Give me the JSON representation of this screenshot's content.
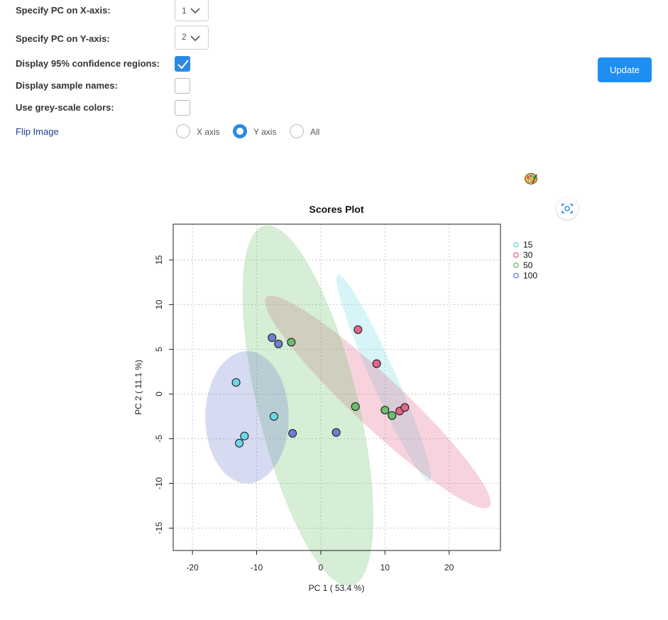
{
  "controls": {
    "pc_x_label": "Specify PC on X-axis:",
    "pc_x_value": "1",
    "pc_y_label": "Specify PC on Y-axis:",
    "pc_y_value": "2",
    "confidence_label": "Display 95% confidence regions:",
    "confidence_checked": true,
    "sample_names_label": "Display sample names:",
    "sample_names_checked": false,
    "greyscale_label": "Use grey-scale colors:",
    "greyscale_checked": false,
    "flip_label": "Flip Image",
    "flip_options": [
      "X axis",
      "Y axis",
      "All"
    ],
    "flip_selected": "Y axis",
    "update_label": "Update"
  },
  "icons": {
    "palette": "palette-icon",
    "screenshot": "camera-focus-icon"
  },
  "colors": {
    "accent": "#2b8ae6",
    "button": "#1e8ef2"
  },
  "chart_data": {
    "type": "scatter",
    "title": "Scores Plot",
    "xlabel": "PC 1 ( 53.4 %)",
    "ylabel": "PC 2 ( 11.1 %)",
    "xlim": [
      -23,
      28
    ],
    "ylim": [
      -17.5,
      19
    ],
    "xticks": [
      -20,
      -10,
      0,
      10,
      20
    ],
    "yticks": [
      -15,
      -10,
      -5,
      0,
      5,
      10,
      15
    ],
    "grid": true,
    "legend_position": "right",
    "series": [
      {
        "name": "15",
        "color": "#6fd6ea",
        "points": [
          [
            -13.2,
            1.3
          ],
          [
            -7.3,
            -2.5
          ],
          [
            -11.9,
            -4.7
          ],
          [
            -12.7,
            -5.5
          ]
        ],
        "ellipse": {
          "cx": 9.8,
          "cy": 1.8,
          "rx": 13.6,
          "ry": 1.8,
          "angle_deg": -58
        }
      },
      {
        "name": "30",
        "color": "#e26686",
        "points": [
          [
            5.8,
            7.2
          ],
          [
            8.7,
            3.4
          ],
          [
            12.3,
            -1.9
          ],
          [
            13.1,
            -1.5
          ]
        ],
        "ellipse": {
          "cx": 8.9,
          "cy": -0.9,
          "rx": 21.0,
          "ry": 3.2,
          "angle_deg": -33.5
        }
      },
      {
        "name": "50",
        "color": "#6cbf6c",
        "points": [
          [
            -4.6,
            5.8
          ],
          [
            5.4,
            -1.4
          ],
          [
            10.0,
            -1.8
          ],
          [
            11.1,
            -2.4
          ]
        ],
        "ellipse": {
          "cx": -2.0,
          "cy": -1.3,
          "rx": 21.3,
          "ry": 7.6,
          "angle_deg": -70
        }
      },
      {
        "name": "100",
        "color": "#6f7ed0",
        "points": [
          [
            -7.6,
            6.3
          ],
          [
            -6.6,
            5.6
          ],
          [
            -4.4,
            -4.4
          ],
          [
            2.4,
            -4.3
          ]
        ],
        "ellipse": {
          "cx": -11.5,
          "cy": -2.6,
          "rx": 6.5,
          "ry": 7.4,
          "angle_deg": 0
        }
      }
    ]
  }
}
